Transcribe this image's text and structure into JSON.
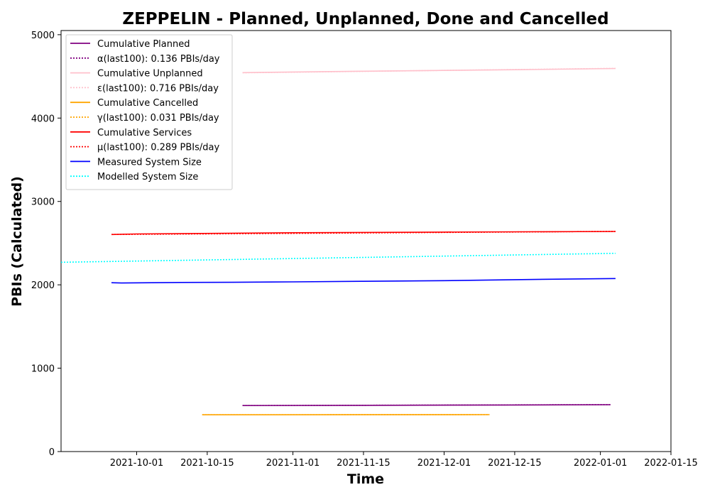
{
  "chart_data": {
    "type": "line",
    "title": "ZEPPELIN - Planned, Unplanned, Done  and Cancelled",
    "xlabel": "Time",
    "ylabel": "PBIs (Calculated)",
    "xlim": [
      "2021-09-16",
      "2022-01-15"
    ],
    "ylim": [
      0,
      5050
    ],
    "x_ticks": [
      "2021-10-01",
      "2021-10-15",
      "2021-11-01",
      "2021-11-15",
      "2021-12-01",
      "2021-12-15",
      "2022-01-01",
      "2022-01-15"
    ],
    "y_ticks": [
      0,
      1000,
      2000,
      3000,
      4000,
      5000
    ],
    "grid": false,
    "legend_position": "top-left",
    "legend": [
      {
        "label": "Cumulative Planned",
        "color": "#800080",
        "style": "solid"
      },
      {
        "label": "α(last100): 0.136 PBIs/day",
        "color": "#800080",
        "style": "dotted"
      },
      {
        "label": "Cumulative Unplanned",
        "color": "#ffc0cb",
        "style": "solid"
      },
      {
        "label": "ε(last100): 0.716 PBIs/day",
        "color": "#ffc0cb",
        "style": "dotted"
      },
      {
        "label": "Cumulative Cancelled",
        "color": "#ffa500",
        "style": "solid"
      },
      {
        "label": "γ(last100): 0.031 PBIs/day",
        "color": "#ffa500",
        "style": "dotted"
      },
      {
        "label": "Cumulative Services",
        "color": "#ff0000",
        "style": "solid"
      },
      {
        "label": "μ(last100): 0.289 PBIs/day",
        "color": "#ff0000",
        "style": "dotted"
      },
      {
        "label": "Measured System Size",
        "color": "#0000ff",
        "style": "solid"
      },
      {
        "label": "Modelled System Size",
        "color": "#00ffff",
        "style": "dotted"
      }
    ],
    "series": [
      {
        "name": "Cumulative Planned",
        "color": "#800080",
        "style": "solid",
        "x": [
          "2021-10-22",
          "2021-11-15",
          "2021-12-15",
          "2022-01-03"
        ],
        "y": [
          552,
          554,
          559,
          562
        ]
      },
      {
        "name": "α(last100): 0.136 PBIs/day",
        "color": "#800080",
        "style": "dotted",
        "x": [
          "2021-10-22",
          "2022-01-03"
        ],
        "y": [
          552,
          563
        ]
      },
      {
        "name": "Cumulative Unplanned",
        "color": "#ffc0cb",
        "style": "solid",
        "x": [
          "2021-10-22",
          "2021-11-15",
          "2021-12-15",
          "2022-01-04"
        ],
        "y": [
          4545,
          4562,
          4580,
          4594
        ]
      },
      {
        "name": "ε(last100): 0.716 PBIs/day",
        "color": "#ffc0cb",
        "style": "dotted",
        "x": [
          "2021-10-22",
          "2022-01-04"
        ],
        "y": [
          4543,
          4596
        ]
      },
      {
        "name": "Cumulative Cancelled",
        "color": "#ffa500",
        "style": "solid",
        "x": [
          "2021-10-14",
          "2021-12-10"
        ],
        "y": [
          441,
          443
        ]
      },
      {
        "name": "γ(last100): 0.031 PBIs/day",
        "color": "#ffa500",
        "style": "dotted",
        "x": [
          "2021-10-14",
          "2021-12-10"
        ],
        "y": [
          441,
          443
        ]
      },
      {
        "name": "Cumulative Services",
        "color": "#ff0000",
        "style": "solid",
        "x": [
          "2021-09-26",
          "2021-10-01",
          "2021-11-01",
          "2021-12-01",
          "2022-01-04"
        ],
        "y": [
          2603,
          2610,
          2625,
          2632,
          2640
        ]
      },
      {
        "name": "μ(last100): 0.289 PBIs/day",
        "color": "#ff0000",
        "style": "dotted",
        "x": [
          "2021-09-26",
          "2022-01-04"
        ],
        "y": [
          2604,
          2641
        ]
      },
      {
        "name": "Measured System Size",
        "color": "#0000ff",
        "style": "solid",
        "x": [
          "2021-09-26",
          "2021-09-28",
          "2021-10-08",
          "2021-10-20",
          "2021-11-01",
          "2021-11-15",
          "2021-12-01",
          "2021-12-15",
          "2022-01-04"
        ],
        "y": [
          2025,
          2022,
          2028,
          2030,
          2035,
          2042,
          2050,
          2062,
          2075
        ]
      },
      {
        "name": "Modelled System Size",
        "color": "#00ffff",
        "style": "dotted",
        "x": [
          "2021-09-16",
          "2022-01-04"
        ],
        "y": [
          2270,
          2378
        ]
      }
    ]
  }
}
